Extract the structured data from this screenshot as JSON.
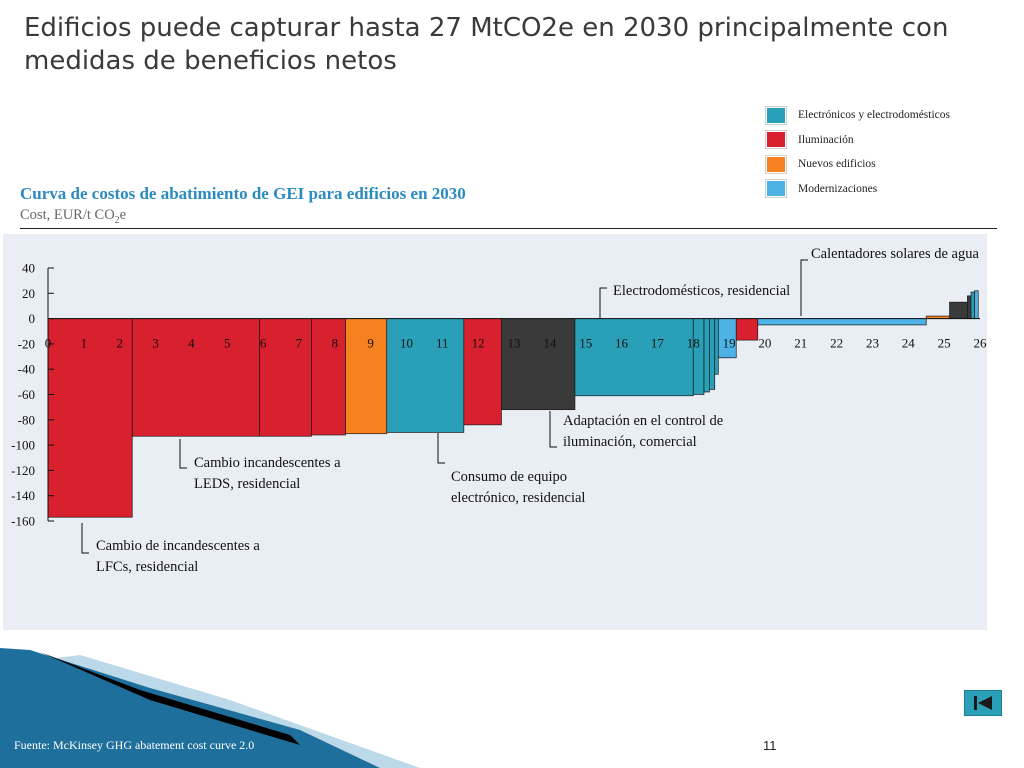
{
  "slide": {
    "title": "Edificios puede capturar hasta 27 MtCO2e en 2030 principalmente con medidas de beneficios netos",
    "source": "Fuente: McKinsey GHG abatement cost curve 2.0",
    "page_number": "11"
  },
  "colors": {
    "electronics": "#2aa0b8",
    "lighting": "#d9202e",
    "new_buildings": "#f5821f",
    "retrofits": "#4db3e6",
    "other": "#3a3a3a",
    "title_blue": "#2a8bc0",
    "plot_bg": "#e9eef5"
  },
  "legend": [
    {
      "label": "Electrónicos y electrodomésticos",
      "color": "#2aa0b8"
    },
    {
      "label": "Iluminación",
      "color": "#d9202e"
    },
    {
      "label": "Nuevos edificios",
      "color": "#f5821f"
    },
    {
      "label": "Modernizaciones",
      "color": "#4db3e6"
    }
  ],
  "chart_data": {
    "type": "bar",
    "title": "Curva de costos de abatimiento de GEI para edificios en 2030",
    "ylabel_prefix": "Cost, EUR/t CO",
    "ylabel_sub": "2",
    "ylabel_suffix": "e",
    "xlim": [
      0,
      26
    ],
    "ylim": [
      -160,
      40
    ],
    "y_ticks": [
      40,
      20,
      0,
      -20,
      -40,
      -60,
      -80,
      -100,
      -120,
      -140,
      -160
    ],
    "x_ticks": [
      0,
      1,
      2,
      3,
      4,
      5,
      6,
      7,
      8,
      9,
      10,
      11,
      12,
      13,
      14,
      15,
      16,
      17,
      18,
      19,
      20,
      21,
      22,
      23,
      24,
      25,
      26
    ],
    "bars": [
      {
        "x0": 0.0,
        "x1": 2.35,
        "value": -157,
        "color": "#d9202e"
      },
      {
        "x0": 2.35,
        "x1": 5.9,
        "value": -93,
        "color": "#d9202e"
      },
      {
        "x0": 5.9,
        "x1": 7.35,
        "value": -93,
        "color": "#d9202e"
      },
      {
        "x0": 7.35,
        "x1": 8.3,
        "value": -92,
        "color": "#d9202e"
      },
      {
        "x0": 8.3,
        "x1": 9.45,
        "value": -91,
        "color": "#f5821f"
      },
      {
        "x0": 9.45,
        "x1": 11.6,
        "value": -90,
        "color": "#2aa0b8"
      },
      {
        "x0": 11.6,
        "x1": 12.65,
        "value": -84,
        "color": "#d9202e"
      },
      {
        "x0": 12.65,
        "x1": 14.7,
        "value": -72,
        "color": "#3a3a3a"
      },
      {
        "x0": 14.7,
        "x1": 18.0,
        "value": -61,
        "color": "#2aa0b8"
      },
      {
        "x0": 18.0,
        "x1": 18.3,
        "value": -60,
        "color": "#2aa0b8"
      },
      {
        "x0": 18.3,
        "x1": 18.45,
        "value": -58,
        "color": "#2aa0b8"
      },
      {
        "x0": 18.45,
        "x1": 18.6,
        "value": -56,
        "color": "#2aa0b8"
      },
      {
        "x0": 18.6,
        "x1": 18.7,
        "value": -44,
        "color": "#2aa0b8"
      },
      {
        "x0": 18.7,
        "x1": 19.2,
        "value": -31,
        "color": "#4db3e6"
      },
      {
        "x0": 19.2,
        "x1": 19.8,
        "value": -17,
        "color": "#d9202e"
      },
      {
        "x0": 19.8,
        "x1": 24.5,
        "value": -5,
        "color": "#4db3e6"
      },
      {
        "x0": 24.5,
        "x1": 25.15,
        "value": 2,
        "color": "#f5821f"
      },
      {
        "x0": 25.15,
        "x1": 25.65,
        "value": 13,
        "color": "#3a3a3a"
      },
      {
        "x0": 25.65,
        "x1": 25.75,
        "value": 18,
        "color": "#3a3a3a"
      },
      {
        "x0": 25.75,
        "x1": 25.85,
        "value": 21,
        "color": "#2aa0b8"
      },
      {
        "x0": 25.85,
        "x1": 25.95,
        "value": 22,
        "color": "#4db3e6"
      }
    ],
    "annotations": [
      {
        "lines": [
          "Cambio de incandescentes a",
          "LFCs, residencial"
        ],
        "bar": 0
      },
      {
        "lines": [
          "Cambio incandescentes a",
          "LEDS, residencial"
        ],
        "bar": 1
      },
      {
        "lines": [
          "Consumo de equipo",
          "electrónico, residencial"
        ],
        "bar": 5
      },
      {
        "lines": [
          "Adaptación en el control de",
          "iluminación, comercial"
        ],
        "bar": 7
      },
      {
        "lines": [
          "Electrodomésticos, residencial"
        ],
        "bar": 8
      },
      {
        "lines": [
          "Calentadores solares de agua"
        ],
        "bar": 15
      }
    ]
  }
}
